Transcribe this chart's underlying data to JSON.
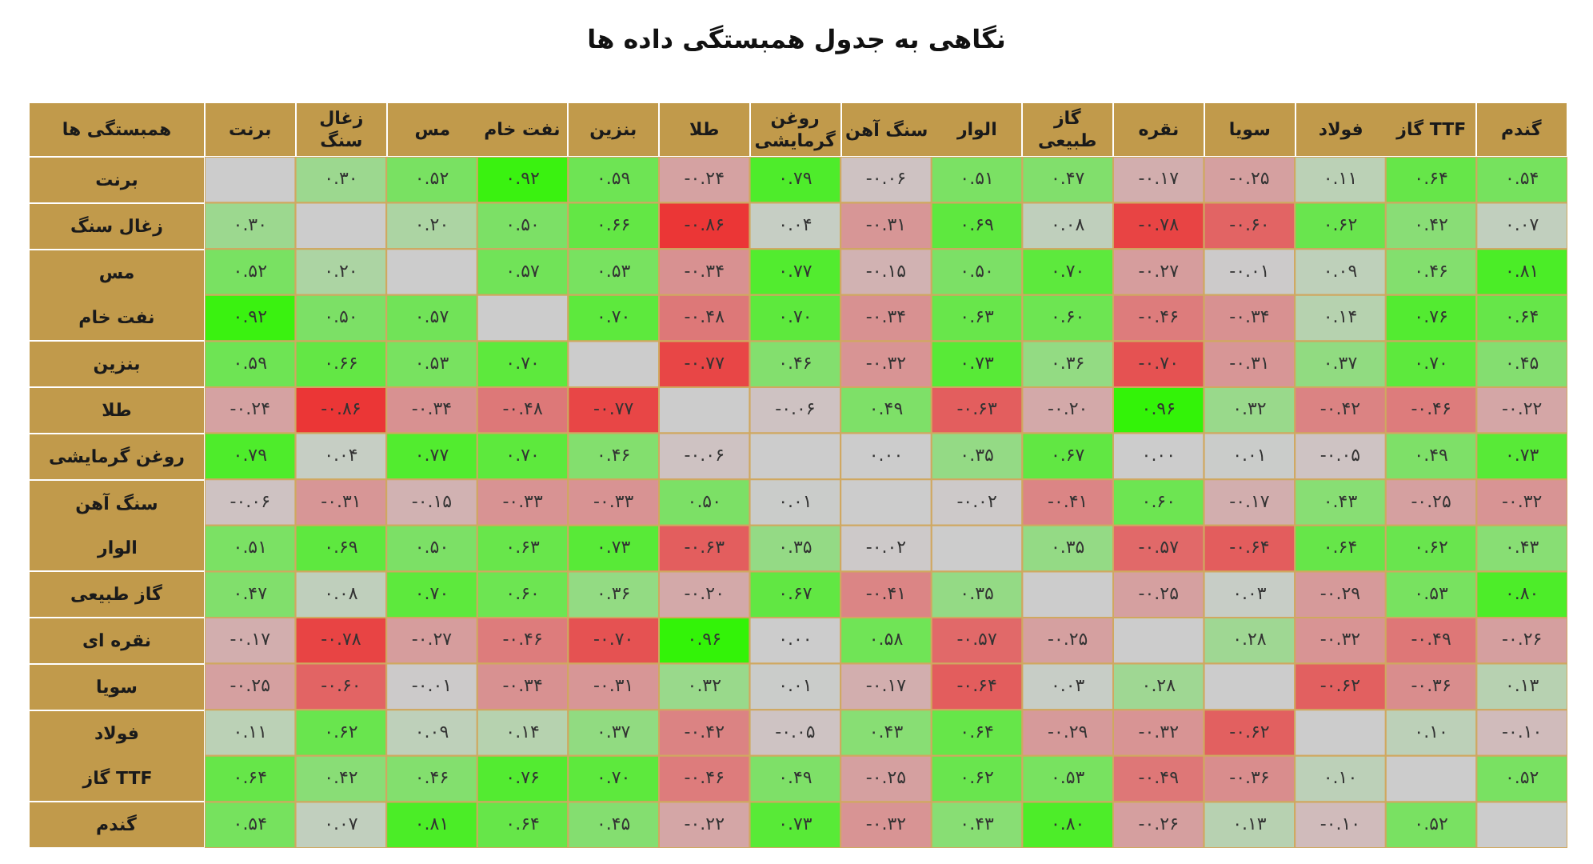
{
  "chart_data": {
    "type": "heatmap",
    "title": "نگاهی به جدول همبستگی داده ها",
    "ylabel": "همبستگی ها",
    "categories": [
      "برنت",
      "زغال سنگ",
      "مس",
      "نفت خام",
      "بنزین",
      "طلا",
      "روغن گرمایشی",
      "سنگ آهن",
      "الوار",
      "گاز طبیعی",
      "نقره",
      "سویا",
      "فولاد",
      "گاز TTF",
      "گندم"
    ],
    "y_categories": [
      "برنت",
      "زغال سنگ",
      "مس",
      "نفت خام",
      "بنزین",
      "طلا",
      "روغن گرمایشی",
      "سنگ آهن",
      "الوار",
      "گاز طبیعی",
      "نقره ای",
      "سویا",
      "فولاد",
      "گاز TTF",
      "گندم"
    ],
    "cells": [
      [
        null,
        0.3,
        0.52,
        0.92,
        0.59,
        -0.24,
        0.79,
        -0.06,
        0.51,
        0.47,
        -0.17,
        -0.25,
        0.11,
        0.64,
        0.54
      ],
      [
        0.3,
        null,
        0.2,
        0.5,
        0.66,
        -0.86,
        0.04,
        -0.31,
        0.69,
        0.08,
        -0.78,
        -0.6,
        0.62,
        0.42,
        0.07
      ],
      [
        0.52,
        0.2,
        null,
        0.57,
        0.53,
        -0.34,
        0.77,
        -0.15,
        0.5,
        0.7,
        -0.27,
        -0.01,
        0.09,
        0.46,
        0.81
      ],
      [
        0.92,
        0.5,
        0.57,
        null,
        0.7,
        -0.48,
        0.7,
        -0.34,
        0.63,
        0.6,
        -0.46,
        -0.34,
        0.14,
        0.76,
        0.64
      ],
      [
        0.59,
        0.66,
        0.53,
        0.7,
        null,
        -0.77,
        0.46,
        -0.32,
        0.73,
        0.36,
        -0.7,
        -0.31,
        0.37,
        0.7,
        0.45
      ],
      [
        -0.24,
        -0.86,
        -0.34,
        -0.48,
        -0.77,
        null,
        -0.06,
        0.49,
        -0.63,
        -0.2,
        0.96,
        0.32,
        -0.42,
        -0.46,
        -0.22
      ],
      [
        0.79,
        0.04,
        0.77,
        0.7,
        0.46,
        -0.06,
        null,
        0.0,
        0.35,
        0.67,
        0.0,
        0.01,
        -0.05,
        0.49,
        0.73
      ],
      [
        -0.06,
        -0.31,
        -0.15,
        -0.33,
        -0.33,
        0.5,
        0.01,
        null,
        -0.02,
        -0.41,
        0.6,
        -0.17,
        0.43,
        -0.25,
        -0.32
      ],
      [
        0.51,
        0.69,
        0.5,
        0.63,
        0.73,
        -0.63,
        0.35,
        -0.02,
        null,
        0.35,
        -0.57,
        -0.64,
        0.64,
        0.62,
        0.43
      ],
      [
        0.47,
        0.08,
        0.7,
        0.6,
        0.36,
        -0.2,
        0.67,
        -0.41,
        0.35,
        null,
        -0.25,
        0.03,
        -0.29,
        0.53,
        0.8
      ],
      [
        -0.17,
        -0.78,
        -0.27,
        -0.46,
        -0.7,
        0.96,
        0.0,
        0.58,
        -0.57,
        -0.25,
        null,
        0.28,
        -0.32,
        -0.49,
        -0.26
      ],
      [
        -0.25,
        -0.6,
        -0.01,
        -0.34,
        -0.31,
        0.32,
        0.01,
        -0.17,
        -0.64,
        0.03,
        0.28,
        null,
        -0.62,
        -0.36,
        0.13
      ],
      [
        0.11,
        0.62,
        0.09,
        0.14,
        0.37,
        -0.42,
        -0.05,
        0.43,
        0.64,
        -0.29,
        -0.32,
        -0.62,
        null,
        0.1,
        -0.1
      ],
      [
        0.64,
        0.42,
        0.46,
        0.76,
        0.7,
        -0.46,
        0.49,
        -0.25,
        0.62,
        0.53,
        -0.49,
        -0.36,
        0.1,
        null,
        0.52
      ],
      [
        0.54,
        0.07,
        0.81,
        0.64,
        0.45,
        -0.22,
        0.73,
        -0.32,
        0.43,
        0.8,
        -0.26,
        0.13,
        -0.1,
        0.52,
        null
      ]
    ],
    "cell_labels": [
      [
        null,
        "۰.۳۰",
        "۰.۵۲",
        "۰.۹۲",
        "۰.۵۹",
        "-۰.۲۴",
        "۰.۷۹",
        "-۰.۰۶",
        "۰.۵۱",
        "۰.۴۷",
        "-۰.۱۷",
        "-۰.۲۵",
        "۰.۱۱",
        "۰.۶۴",
        "۰.۵۴"
      ],
      [
        "۰.۳۰",
        null,
        "۰.۲۰",
        "۰.۵۰",
        "۰.۶۶",
        "-۰.۸۶",
        "۰.۰۴",
        "-۰.۳۱",
        "۰.۶۹",
        "۰.۰۸",
        "-۰.۷۸",
        "-۰.۶۰",
        "۰.۶۲",
        "۰.۴۲",
        "۰.۰۷"
      ],
      [
        "۰.۵۲",
        "۰.۲۰",
        null,
        "۰.۵۷",
        "۰.۵۳",
        "-۰.۳۴",
        "۰.۷۷",
        "-۰.۱۵",
        "۰.۵۰",
        "۰.۷۰",
        "-۰.۲۷",
        "-۰.۰۱",
        "۰.۰۹",
        "۰.۴۶",
        "۰.۸۱"
      ],
      [
        "۰.۹۲",
        "۰.۵۰",
        "۰.۵۷",
        null,
        "۰.۷۰",
        "-۰.۴۸",
        "۰.۷۰",
        "-۰.۳۴",
        "۰.۶۳",
        "۰.۶۰",
        "-۰.۴۶",
        "-۰.۳۴",
        "۰.۱۴",
        "۰.۷۶",
        "۰.۶۴"
      ],
      [
        "۰.۵۹",
        "۰.۶۶",
        "۰.۵۳",
        "۰.۷۰",
        null,
        "-۰.۷۷",
        "۰.۴۶",
        "-۰.۳۲",
        "۰.۷۳",
        "۰.۳۶",
        "-۰.۷۰",
        "-۰.۳۱",
        "۰.۳۷",
        "۰.۷۰",
        "۰.۴۵"
      ],
      [
        "-۰.۲۴",
        "-۰.۸۶",
        "-۰.۳۴",
        "-۰.۴۸",
        "-۰.۷۷",
        null,
        "-۰.۰۶",
        "۰.۴۹",
        "-۰.۶۳",
        "-۰.۲۰",
        "۰.۹۶",
        "۰.۳۲",
        "-۰.۴۲",
        "-۰.۴۶",
        "-۰.۲۲"
      ],
      [
        "۰.۷۹",
        "۰.۰۴",
        "۰.۷۷",
        "۰.۷۰",
        "۰.۴۶",
        "-۰.۰۶",
        null,
        "۰.۰۰",
        "۰.۳۵",
        "۰.۶۷",
        "۰.۰۰",
        "۰.۰۱",
        "-۰.۰۵",
        "۰.۴۹",
        "۰.۷۳"
      ],
      [
        "-۰.۰۶",
        "-۰.۳۱",
        "-۰.۱۵",
        "-۰.۳۳",
        "-۰.۳۳",
        "۰.۵۰",
        "۰.۰۱",
        null,
        "-۰.۰۲",
        "-۰.۴۱",
        "۰.۶۰",
        "-۰.۱۷",
        "۰.۴۳",
        "-۰.۲۵",
        "-۰.۳۲"
      ],
      [
        "۰.۵۱",
        "۰.۶۹",
        "۰.۵۰",
        "۰.۶۳",
        "۰.۷۳",
        "-۰.۶۳",
        "۰.۳۵",
        "-۰.۰۲",
        null,
        "۰.۳۵",
        "-۰.۵۷",
        "-۰.۶۴",
        "۰.۶۴",
        "۰.۶۲",
        "۰.۴۳"
      ],
      [
        "۰.۴۷",
        "۰.۰۸",
        "۰.۷۰",
        "۰.۶۰",
        "۰.۳۶",
        "-۰.۲۰",
        "۰.۶۷",
        "-۰.۴۱",
        "۰.۳۵",
        null,
        "-۰.۲۵",
        "۰.۰۳",
        "-۰.۲۹",
        "۰.۵۳",
        "۰.۸۰"
      ],
      [
        "-۰.۱۷",
        "-۰.۷۸",
        "-۰.۲۷",
        "-۰.۴۶",
        "-۰.۷۰",
        "۰.۹۶",
        "۰.۰۰",
        "۰.۵۸",
        "-۰.۵۷",
        "-۰.۲۵",
        null,
        "۰.۲۸",
        "-۰.۳۲",
        "-۰.۴۹",
        "-۰.۲۶"
      ],
      [
        "-۰.۲۵",
        "-۰.۶۰",
        "-۰.۰۱",
        "-۰.۳۴",
        "-۰.۳۱",
        "۰.۳۲",
        "۰.۰۱",
        "-۰.۱۷",
        "-۰.۶۴",
        "۰.۰۳",
        "۰.۲۸",
        null,
        "-۰.۶۲",
        "-۰.۳۶",
        "۰.۱۳"
      ],
      [
        "۰.۱۱",
        "۰.۶۲",
        "۰.۰۹",
        "۰.۱۴",
        "۰.۳۷",
        "-۰.۴۲",
        "-۰.۰۵",
        "۰.۴۳",
        "۰.۶۴",
        "-۰.۲۹",
        "-۰.۳۲",
        "-۰.۶۲",
        null,
        "۰.۱۰",
        "-۰.۱۰"
      ],
      [
        "۰.۶۴",
        "۰.۴۲",
        "۰.۴۶",
        "۰.۷۶",
        "۰.۷۰",
        "-۰.۴۶",
        "۰.۴۹",
        "-۰.۲۵",
        "۰.۶۲",
        "۰.۵۳",
        "-۰.۴۹",
        "-۰.۳۶",
        "۰.۱۰",
        null,
        "۰.۵۲"
      ],
      [
        "۰.۵۴",
        "۰.۰۷",
        "۰.۸۱",
        "۰.۶۴",
        "۰.۴۵",
        "-۰.۲۲",
        "۰.۷۳",
        "-۰.۳۲",
        "۰.۴۳",
        "۰.۸۰",
        "-۰.۲۶",
        "۰.۱۳",
        "-۰.۱۰",
        "۰.۵۲",
        null
      ]
    ]
  }
}
